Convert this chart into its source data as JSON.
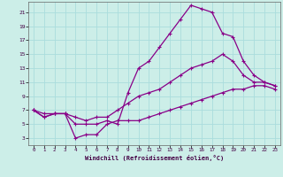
{
  "xlabel": "Windchill (Refroidissement éolien,°C)",
  "bg_color": "#cceee8",
  "grid_color": "#aadddd",
  "line_color": "#880088",
  "xlim": [
    -0.5,
    23.5
  ],
  "ylim": [
    2,
    22.5
  ],
  "xticks": [
    0,
    1,
    2,
    3,
    4,
    5,
    6,
    7,
    8,
    9,
    10,
    11,
    12,
    13,
    14,
    15,
    16,
    17,
    18,
    19,
    20,
    21,
    22,
    23
  ],
  "yticks": [
    3,
    5,
    7,
    9,
    11,
    13,
    15,
    17,
    19,
    21
  ],
  "line1_x": [
    0,
    1,
    2,
    3,
    4,
    5,
    6,
    7,
    8,
    9,
    10,
    11,
    12,
    13,
    14,
    15,
    16,
    17,
    18,
    19,
    20,
    21,
    22,
    23
  ],
  "line1_y": [
    7,
    6,
    6.5,
    6.5,
    5,
    5,
    5,
    5.5,
    5,
    9.5,
    13,
    14,
    16,
    18,
    20,
    22,
    21.5,
    21,
    18,
    17.5,
    14,
    12,
    11,
    10.5
  ],
  "line2_x": [
    0,
    1,
    2,
    3,
    4,
    5,
    6,
    7,
    8,
    9,
    10,
    11,
    12,
    13,
    14,
    15,
    16,
    17,
    18,
    19,
    20,
    21,
    22,
    23
  ],
  "line2_y": [
    7,
    6.5,
    6.5,
    6.5,
    6,
    5.5,
    6,
    6,
    7,
    8,
    9,
    9.5,
    10,
    11,
    12,
    13,
    13.5,
    14,
    15,
    14,
    12,
    11,
    11,
    10.5
  ],
  "line3_x": [
    0,
    1,
    2,
    3,
    4,
    5,
    6,
    7,
    8,
    9,
    10,
    11,
    12,
    13,
    14,
    15,
    16,
    17,
    18,
    19,
    20,
    21,
    22,
    23
  ],
  "line3_y": [
    7,
    6,
    6.5,
    6.5,
    3,
    3.5,
    3.5,
    5,
    5.5,
    5.5,
    5.5,
    6,
    6.5,
    7,
    7.5,
    8,
    8.5,
    9,
    9.5,
    10,
    10,
    10.5,
    10.5,
    10
  ]
}
